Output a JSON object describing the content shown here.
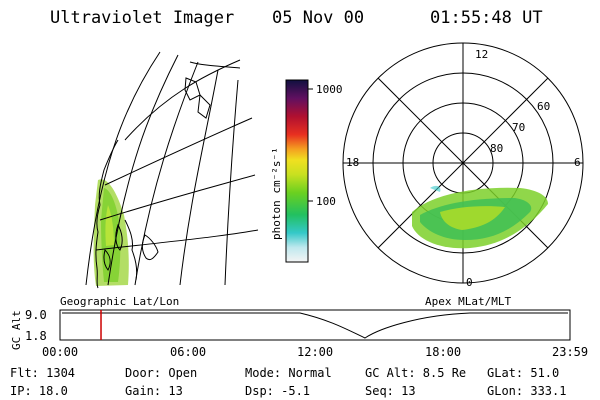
{
  "header": {
    "title": "Ultraviolet Imager",
    "date": "05 Nov 00",
    "time": "01:55:48 UT"
  },
  "colorbar": {
    "unit_label": "photon cm⁻²s⁻¹",
    "ticks": [
      "1000",
      "100"
    ],
    "scale": "log"
  },
  "polar_plot": {
    "mlt_labels": {
      "top": "12",
      "right": "6",
      "left": "18",
      "bottom": "0"
    },
    "lat_labels": [
      "60",
      "70",
      "80"
    ]
  },
  "panel_labels": {
    "left": "Geographic Lat/Lon",
    "right": "Apex MLat/MLT"
  },
  "timeline": {
    "axis_label": "GC Alt",
    "y_ticks": [
      "9.0",
      "1.8"
    ],
    "x_ticks": [
      "00:00",
      "06:00",
      "12:00",
      "18:00",
      "23:59"
    ],
    "current_time_marker": "01:55:48",
    "colors": {
      "marker": "#cc0000",
      "curve": "#000000"
    }
  },
  "footer": {
    "flt": "Flt:  1304",
    "ip": "IP:  18.0",
    "door": "Door:  Open",
    "gain": "Gain:  13",
    "mode": "Mode:  Normal",
    "dsp": "Dsp:     -5.1",
    "gc_alt": "GC Alt:  8.5 Re",
    "seq": "Seq:  13",
    "glat": "GLat:   51.0",
    "glon": "GLon:  333.1"
  }
}
